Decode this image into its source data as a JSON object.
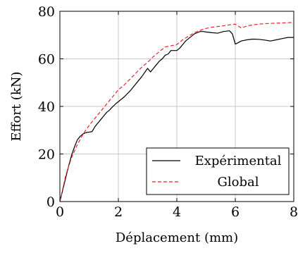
{
  "chart_data": {
    "type": "line",
    "title": "",
    "xlabel": "Déplacement (mm)",
    "ylabel": "Effort (kN)",
    "xlim": [
      0,
      8
    ],
    "ylim": [
      0,
      80
    ],
    "xticks": [
      0,
      2,
      4,
      6,
      8
    ],
    "yticks": [
      0,
      20,
      40,
      60,
      80
    ],
    "xtick_labels": [
      "0",
      "2",
      "4",
      "6",
      "8"
    ],
    "ytick_labels": [
      "0",
      "20",
      "40",
      "60",
      "80"
    ],
    "grid": true,
    "legend_position": "bottom-right",
    "series": [
      {
        "name": "Expérimental",
        "color": "#000000",
        "style": "solid",
        "x": [
          0,
          0.1,
          0.2,
          0.3,
          0.4,
          0.5,
          0.6,
          0.7,
          0.8,
          0.9,
          1.0,
          1.1,
          1.2,
          1.3,
          1.4,
          1.5,
          1.6,
          1.7,
          1.8,
          1.9,
          2.0,
          2.1,
          2.2,
          2.4,
          2.6,
          2.8,
          3.0,
          3.1,
          3.2,
          3.3,
          3.4,
          3.5,
          3.6,
          3.7,
          3.8,
          3.9,
          4.0,
          4.1,
          4.2,
          4.3,
          4.4,
          4.5,
          4.6,
          4.7,
          4.8,
          4.9,
          5.0,
          5.2,
          5.4,
          5.6,
          5.8,
          5.9,
          6.0,
          6.1,
          6.2,
          6.4,
          6.6,
          6.8,
          7.0,
          7.2,
          7.4,
          7.6,
          7.8,
          8.0
        ],
        "y": [
          0,
          5,
          10,
          15,
          19.5,
          23,
          26,
          27.5,
          28.5,
          29,
          29.2,
          29.4,
          31.5,
          33,
          34.5,
          36,
          37.5,
          38.5,
          39.8,
          41,
          42,
          43,
          44,
          46.5,
          49.5,
          52.5,
          56,
          54.5,
          56,
          57.5,
          59,
          60,
          61.5,
          62,
          63.5,
          63.5,
          63.5,
          64.5,
          66,
          67.5,
          68.5,
          69.5,
          70.5,
          71,
          71.5,
          71.5,
          71.3,
          71,
          70.8,
          71.5,
          71.8,
          70.5,
          66.2,
          66.8,
          67.5,
          68,
          68.3,
          68.2,
          67.9,
          67.5,
          68,
          68.5,
          69,
          69
        ]
      },
      {
        "name": "Global",
        "color": "#e8242b",
        "style": "dashed",
        "x": [
          0,
          0.2,
          0.4,
          0.6,
          0.8,
          1.0,
          1.2,
          1.4,
          1.6,
          1.8,
          2.0,
          2.2,
          2.4,
          2.6,
          2.8,
          3.0,
          3.2,
          3.4,
          3.6,
          3.8,
          4.0,
          4.2,
          4.4,
          4.6,
          4.8,
          5.0,
          5.2,
          5.4,
          5.6,
          5.8,
          6.0,
          6.2,
          6.4,
          6.6,
          6.8,
          7.0,
          7.2,
          7.4,
          7.6,
          7.8,
          8.0
        ],
        "y": [
          0,
          11,
          18.5,
          24,
          28.5,
          32,
          35,
          38,
          41,
          44,
          47,
          49,
          51.5,
          54,
          56.5,
          58.5,
          61,
          63,
          65,
          65.5,
          66,
          68,
          69.5,
          71,
          72,
          72.8,
          73.3,
          73.6,
          73.9,
          74.3,
          74.6,
          73,
          73.8,
          74.3,
          74.6,
          74.8,
          74.9,
          75,
          75.1,
          75.2,
          75.3
        ]
      }
    ]
  }
}
